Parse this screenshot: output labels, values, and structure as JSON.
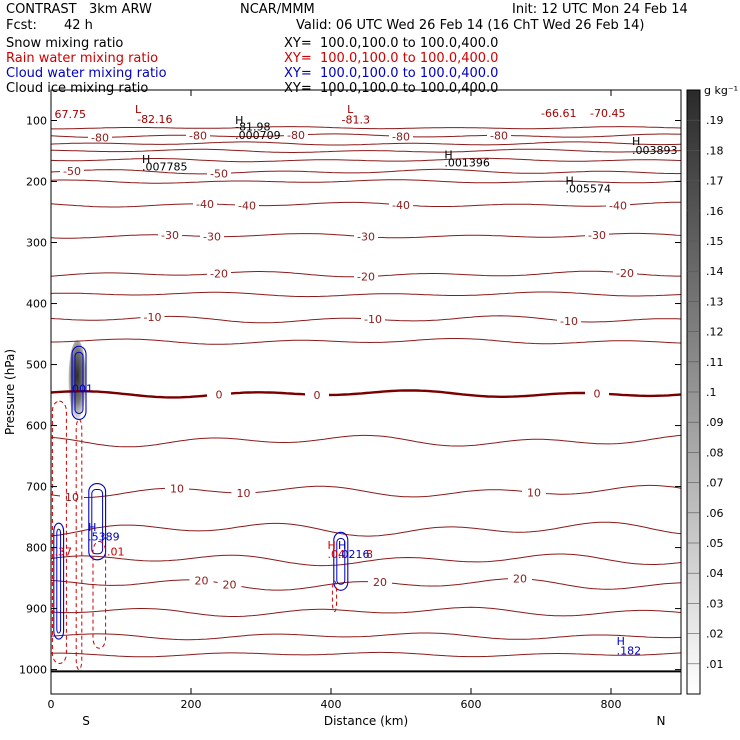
{
  "header": {
    "model": "CONTRAST   3km ARW",
    "center": "NCAR/MMM",
    "init": "Init: 12 UTC Mon 24 Feb 14",
    "fcst_label": "Fcst:",
    "fcst_value": "42 h",
    "valid": "Valid: 06 UTC Wed 26 Feb 14 (16 ChT Wed 26 Feb 14)"
  },
  "fields": [
    {
      "name": "Snow mixing ratio",
      "xy": "XY=  100.0,100.0 to 100.0,400.0",
      "color": "#000000"
    },
    {
      "name": "Rain water mixing ratio",
      "xy": "XY=  100.0,100.0 to 100.0,400.0",
      "color": "#d00000"
    },
    {
      "name": "Cloud water mixing ratio",
      "xy": "XY=  100.0,100.0 to 100.0,400.0",
      "color": "#0000c0"
    },
    {
      "name": "Cloud ice mixing ratio",
      "xy": "XY=  100.0,100.0 to 100.0,400.0",
      "color": "#000000"
    }
  ],
  "chart_data": {
    "type": "cross-section contour",
    "xlabel": "Distance (km)",
    "ylabel": "Pressure (hPa)",
    "xlim": [
      0,
      900
    ],
    "ylim": [
      1040,
      50
    ],
    "xticks": [
      0,
      200,
      400,
      600,
      800
    ],
    "yticks": [
      100,
      200,
      300,
      400,
      500,
      600,
      700,
      800,
      900,
      1000
    ],
    "x_endpoints": {
      "left": "S",
      "right": "N"
    },
    "colorbar": {
      "unit": "g kg⁻¹",
      "levels": [
        ".01",
        ".02",
        ".03",
        ".04",
        ".05",
        ".06",
        ".07",
        ".08",
        ".09",
        ".1",
        ".11",
        ".12",
        ".13",
        ".14",
        ".15",
        ".16",
        ".17",
        ".18",
        ".19"
      ]
    },
    "temperature_contours": [
      {
        "level": -80,
        "label": "-80",
        "p": 125,
        "amp": 3,
        "labels_at": [
          70,
          210,
          350,
          500,
          640
        ]
      },
      {
        "level": -80,
        "label": "",
        "p": 112,
        "amp": 2,
        "labels_at": []
      },
      {
        "level": -80,
        "label": "",
        "p": 138,
        "amp": 3,
        "labels_at": []
      },
      {
        "level": -70,
        "label": "",
        "p": 150,
        "amp": 3,
        "labels_at": []
      },
      {
        "level": -60,
        "label": "",
        "p": 165,
        "amp": 3,
        "labels_at": []
      },
      {
        "level": -50,
        "label": "-50",
        "p": 184,
        "amp": 4,
        "labels_at": [
          30,
          240
        ]
      },
      {
        "level": -45,
        "label": "",
        "p": 200,
        "amp": 3,
        "labels_at": []
      },
      {
        "level": -40,
        "label": "-40",
        "p": 238,
        "amp": 4,
        "labels_at": [
          220,
          280,
          500,
          810
        ]
      },
      {
        "level": -30,
        "label": "-30",
        "p": 289,
        "amp": 4,
        "labels_at": [
          170,
          230,
          450,
          780
        ]
      },
      {
        "level": -20,
        "label": "-20",
        "p": 352,
        "amp": 5,
        "labels_at": [
          240,
          450,
          820
        ]
      },
      {
        "level": -15,
        "label": "",
        "p": 385,
        "amp": 4,
        "labels_at": []
      },
      {
        "level": -10,
        "label": "-10",
        "p": 426,
        "amp": 6,
        "labels_at": [
          145,
          460,
          740
        ]
      },
      {
        "level": -5,
        "label": "",
        "p": 462,
        "amp": 5,
        "labels_at": []
      },
      {
        "level": 0,
        "label": "0",
        "p": 548,
        "amp": 6,
        "labels_at": [
          240,
          380,
          780
        ]
      },
      {
        "level": 5,
        "label": "",
        "p": 625,
        "amp": 10,
        "labels_at": []
      },
      {
        "level": 10,
        "label": "10",
        "p": 708,
        "amp": 10,
        "labels_at": [
          30,
          180,
          275,
          690
        ]
      },
      {
        "level": 15,
        "label": "",
        "p": 770,
        "amp": 12,
        "labels_at": []
      },
      {
        "level": 18,
        "label": "",
        "p": 820,
        "amp": 10,
        "labels_at": []
      },
      {
        "level": 20,
        "label": "20",
        "p": 860,
        "amp": 10,
        "labels_at": [
          215,
          255,
          470,
          670
        ]
      },
      {
        "level": 22,
        "label": "",
        "p": 905,
        "amp": 8,
        "labels_at": []
      },
      {
        "level": 24,
        "label": "",
        "p": 945,
        "amp": 6,
        "labels_at": []
      },
      {
        "level": 25,
        "label": "",
        "p": 975,
        "amp": 4,
        "labels_at": []
      }
    ],
    "surface_pressure": 1003,
    "annotations": [
      {
        "text": "67.75",
        "x": 5,
        "p": 96,
        "color": "#a00000"
      },
      {
        "text": "L",
        "x": 120,
        "p": 88,
        "color": "#a00000"
      },
      {
        "text": "-82.16",
        "x": 123,
        "p": 104,
        "color": "#a00000"
      },
      {
        "text": "H",
        "x": 263,
        "p": 106,
        "color": "#000000"
      },
      {
        "text": "-81.98",
        "x": 263,
        "p": 116,
        "color": "#000000"
      },
      {
        "text": ".000709",
        "x": 263,
        "p": 130,
        "color": "#000000"
      },
      {
        "text": "-81.3",
        "x": 415,
        "p": 105,
        "color": "#a00000"
      },
      {
        "text": "L",
        "x": 423,
        "p": 88,
        "color": "#a00000"
      },
      {
        "text": "-66.61",
        "x": 700,
        "p": 94,
        "color": "#a00000"
      },
      {
        "text": "-70.45",
        "x": 770,
        "p": 94,
        "color": "#a00000"
      },
      {
        "text": "H",
        "x": 130,
        "p": 170,
        "color": "#000000"
      },
      {
        "text": ".007785",
        "x": 130,
        "p": 182,
        "color": "#000000"
      },
      {
        "text": "H",
        "x": 562,
        "p": 162,
        "color": "#000000"
      },
      {
        "text": ".001396",
        "x": 562,
        "p": 175,
        "color": "#000000"
      },
      {
        "text": "H",
        "x": 830,
        "p": 140,
        "color": "#000000"
      },
      {
        "text": ".003893",
        "x": 830,
        "p": 155,
        "color": "#000000"
      },
      {
        "text": "H",
        "x": 735,
        "p": 205,
        "color": "#000000"
      },
      {
        "text": ".005574",
        "x": 735,
        "p": 218,
        "color": "#000000"
      },
      {
        "text": ".001",
        "x": 25,
        "p": 546,
        "color": "#0000c0"
      },
      {
        "text": "H",
        "x": 53,
        "p": 773,
        "color": "#0000c0"
      },
      {
        "text": ".5389",
        "x": 53,
        "p": 788,
        "color": "#0000c0"
      },
      {
        "text": ".37",
        "x": 5,
        "p": 813,
        "color": "#d00000"
      },
      {
        "text": ".01",
        "x": 80,
        "p": 813,
        "color": "#d00000"
      },
      {
        "text": "H",
        "x": 395,
        "p": 802,
        "color": "#d00000"
      },
      {
        "text": ".04",
        "x": 395,
        "p": 817,
        "color": "#d00000"
      },
      {
        "text": "H",
        "x": 410,
        "p": 802,
        "color": "#0000c0"
      },
      {
        "text": ".0216",
        "x": 410,
        "p": 817,
        "color": "#0000c0"
      },
      {
        "text": "8",
        "x": 450,
        "p": 817,
        "color": "#d00000"
      },
      {
        "text": "H",
        "x": 808,
        "p": 960,
        "color": "#0000c0"
      },
      {
        "text": ".182",
        "x": 808,
        "p": 975,
        "color": "#0000c0"
      }
    ],
    "snow_shading": {
      "x": [
        25,
        50
      ],
      "p": [
        460,
        590
      ],
      "max": ".19"
    },
    "cloud_water_contours": [
      {
        "x": [
          4,
          18
        ],
        "p": [
          760,
          950
        ],
        "color": "#0000c0"
      },
      {
        "x": [
          30,
          50
        ],
        "p": [
          470,
          590
        ],
        "color": "#0000c0"
      },
      {
        "x": [
          54,
          78
        ],
        "p": [
          695,
          820
        ],
        "color": "#0000c0"
      },
      {
        "x": [
          404,
          424
        ],
        "p": [
          775,
          870
        ],
        "color": "#0000c0"
      }
    ],
    "rain_contours": [
      {
        "x": [
          2,
          22
        ],
        "p": [
          560,
          990
        ],
        "color": "#d00000"
      },
      {
        "x": [
          36,
          44
        ],
        "p": [
          590,
          1000
        ],
        "color": "#d00000"
      },
      {
        "x": [
          60,
          78
        ],
        "p": [
          790,
          965
        ],
        "color": "#d00000"
      },
      {
        "x": [
          402,
          408
        ],
        "p": [
          855,
          905
        ],
        "color": "#d00000"
      }
    ]
  }
}
